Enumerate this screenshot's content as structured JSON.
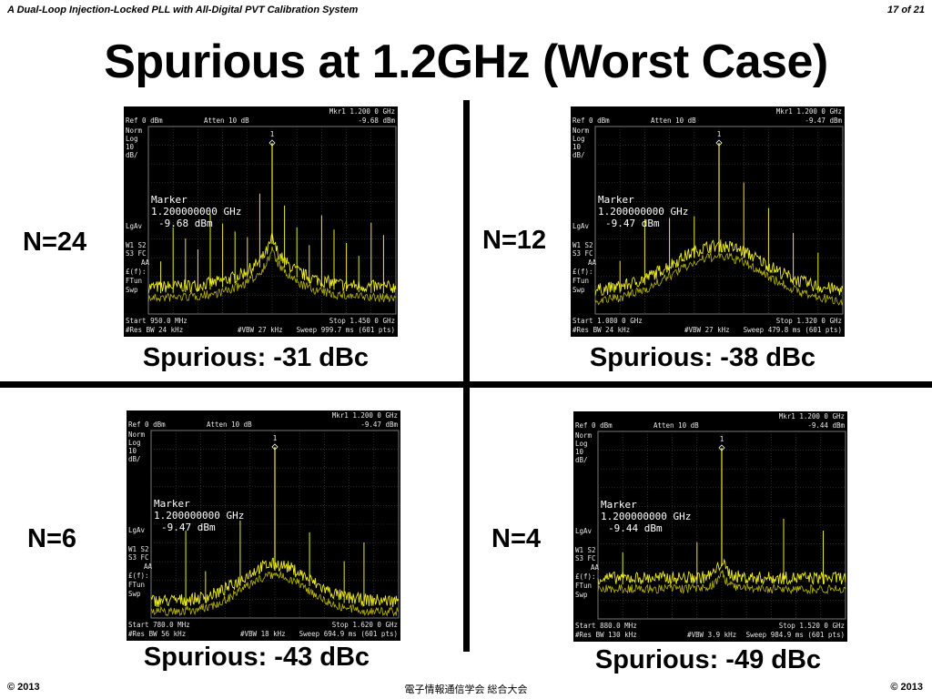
{
  "header": {
    "title": "A Dual-Loop Injection-Locked PLL with All-Digital PVT Calibration System",
    "page": "17 of 21"
  },
  "title": "Spurious at 1.2GHz (Worst Case)",
  "screen_labels": {
    "ref": "Ref 0 dBm",
    "atten": "Atten 10 dB",
    "norm": "Norm",
    "log": "Log",
    "scale": "10",
    "unit": "dB/",
    "lgav": "LgAv",
    "w1s2": "W1  S2",
    "s3fc": "S3  FC",
    "aa": "AA",
    "ff": "£(f):",
    "ftun": "FTun",
    "swp": "Swp",
    "marker": "Marker",
    "marker_freq": "1.200000000 GHz",
    "marker_id": "1"
  },
  "panels": [
    {
      "label": "N=24",
      "spurious": "Spurious: -31 dBc",
      "mkr": "Mkr1  1.200 0 GHz",
      "marker_value": "-9.68 dBm",
      "start": "Start 950.0 MHz",
      "stop": "Stop 1.450 0 GHz",
      "rbw": "#Res BW 24 kHz",
      "vbw": "#VBW 27 kHz",
      "sweep": "Sweep 999.7 ms (601 pts)"
    },
    {
      "label": "N=12",
      "spurious": "Spurious: -38 dBc",
      "mkr": "Mkr1  1.200 0 GHz",
      "marker_value": "-9.47 dBm",
      "start": "Start 1.080 0 GHz",
      "stop": "Stop 1.320 0 GHz",
      "rbw": "#Res BW 24 kHz",
      "vbw": "#VBW 27 kHz",
      "sweep": "Sweep 479.8 ms (601 pts)"
    },
    {
      "label": "N=6",
      "spurious": "Spurious: -43 dBc",
      "mkr": "Mkr1  1.200 0 GHz",
      "marker_value": "-9.47 dBm",
      "start": "Start 780.0 MHz",
      "stop": "Stop 1.620 0 GHz",
      "rbw": "#Res BW 56 kHz",
      "vbw": "#VBW 18 kHz",
      "sweep": "Sweep 694.9 ms (601 pts)"
    },
    {
      "label": "N=4",
      "spurious": "Spurious: -49 dBc",
      "mkr": "Mkr1  1.200 0 GHz",
      "marker_value": "-9.44 dBm",
      "start": "Start 880.0 MHz",
      "stop": "Stop 1.520 0 GHz",
      "rbw": "#Res BW 130 kHz",
      "vbw": "#VBW 3.9 kHz",
      "sweep": "Sweep 984.9 ms (601 pts)"
    }
  ],
  "footer": {
    "left": "© 2013",
    "center": "電子情報通信学会 総合大会",
    "right": "© 2013"
  }
}
